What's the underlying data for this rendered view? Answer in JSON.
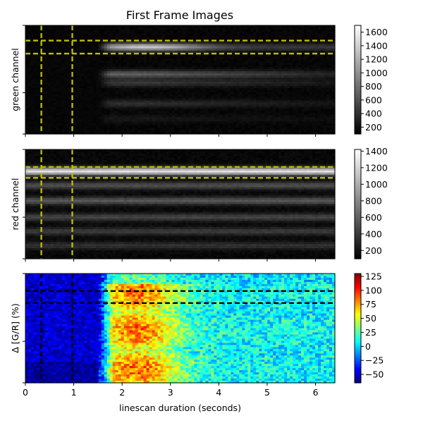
{
  "chart_data": [
    {
      "type": "heatmap",
      "title": "First Frame Images",
      "ylabel": "green channel",
      "colormap": "gray",
      "colorbar_ticks": [
        200,
        400,
        600,
        800,
        1000,
        1200,
        1400,
        1600
      ],
      "colorbar_range": [
        100,
        1700
      ],
      "xlim": [
        0,
        6.4
      ],
      "grid": false,
      "roi_vertical_x": [
        0.33,
        0.97
      ],
      "roi_horizontal_band": [
        0.14,
        0.26
      ],
      "roi_color": "#bfbf00",
      "bright_bands": [
        {
          "y": 0.2,
          "value": 1350,
          "from_x": 1.5
        },
        {
          "y": 0.45,
          "value": 700,
          "from_x": 1.5
        },
        {
          "y": 0.53,
          "value": 450,
          "from_x": 1.5
        },
        {
          "y": 0.72,
          "value": 400,
          "from_x": 1.5
        },
        {
          "y": 0.86,
          "value": 250,
          "from_x": 1.5
        }
      ]
    },
    {
      "type": "heatmap",
      "ylabel": "red channel",
      "colormap": "gray",
      "colorbar_ticks": [
        200,
        400,
        600,
        800,
        1000,
        1200,
        1400
      ],
      "colorbar_range": [
        100,
        1420
      ],
      "xlim": [
        0,
        6.4
      ],
      "grid": false,
      "roi_vertical_x": [
        0.33,
        0.97
      ],
      "roi_horizontal_band": [
        0.16,
        0.26
      ],
      "roi_color": "#bfbf00",
      "bright_bands": [
        {
          "y": 0.2,
          "value": 1250,
          "from_x": 0
        },
        {
          "y": 0.33,
          "value": 500,
          "from_x": 0
        },
        {
          "y": 0.47,
          "value": 550,
          "from_x": 0
        },
        {
          "y": 0.62,
          "value": 450,
          "from_x": 0
        },
        {
          "y": 0.75,
          "value": 400,
          "from_x": 0
        },
        {
          "y": 0.88,
          "value": 350,
          "from_x": 0
        }
      ]
    },
    {
      "type": "heatmap",
      "ylabel": "Δ [G/R] (%)",
      "xlabel": "linescan duration (seconds)",
      "colormap": "jet",
      "colorbar_ticks": [
        -50,
        -25,
        0,
        25,
        50,
        75,
        100,
        125
      ],
      "colorbar_range": [
        -65,
        130
      ],
      "xlim": [
        0,
        6.4
      ],
      "x_ticks": [
        0,
        1,
        2,
        3,
        4,
        5,
        6
      ],
      "grid": false,
      "roi_vertical_x": [
        0.33,
        0.97
      ],
      "roi_horizontal_band": [
        0.16,
        0.27
      ],
      "roi_color": "#000000",
      "baseline_value": -50,
      "response": {
        "onset_x": 1.5,
        "peak_x": 2.3,
        "peak_value": 85,
        "late_value": 10
      }
    }
  ]
}
